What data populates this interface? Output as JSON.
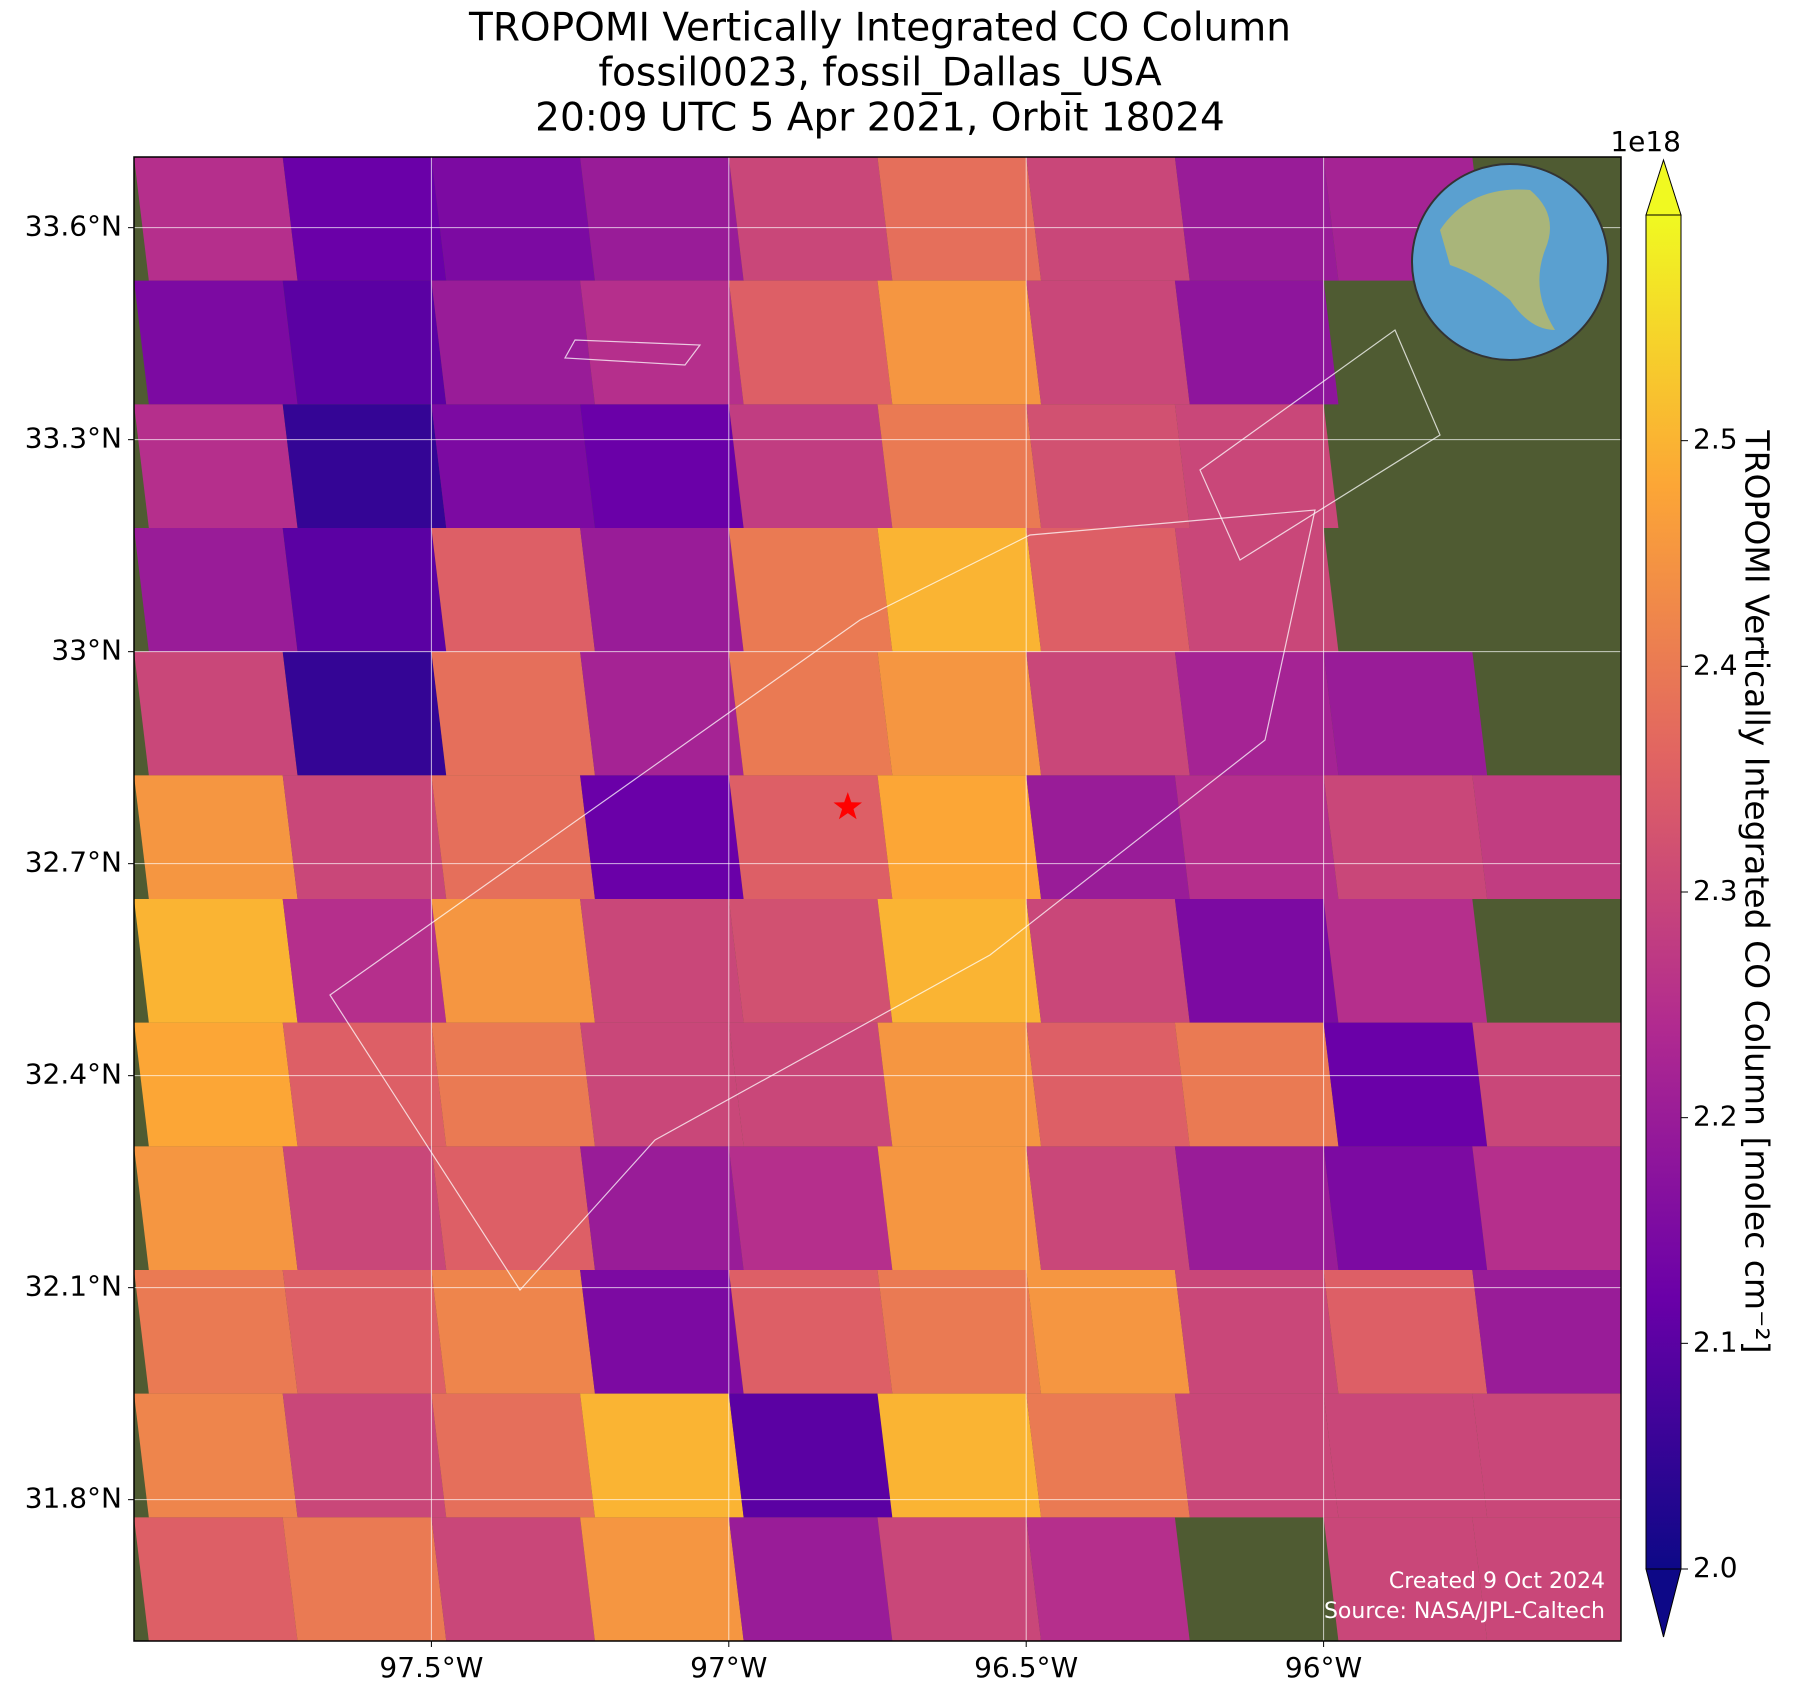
{
  "chart_data": {
    "type": "map",
    "title": [
      "TROPOMI Vertically Integrated CO Column",
      "fossil0023, fossil_Dallas_USA",
      "20:09 UTC 5 Apr 2021, Orbit 18024"
    ],
    "xlim": [
      -98.0,
      -95.5
    ],
    "ylim": [
      31.6,
      33.7
    ],
    "xticks": [
      {
        "value": -97.5,
        "label": "97.5°W"
      },
      {
        "value": -97,
        "label": "97°W"
      },
      {
        "value": -96.5,
        "label": "96.5°W"
      },
      {
        "value": -96,
        "label": "96°W"
      }
    ],
    "yticks": [
      {
        "value": 31.8,
        "label": "31.8°N"
      },
      {
        "value": 32.1,
        "label": "32.1°N"
      },
      {
        "value": 32.4,
        "label": "32.4°N"
      },
      {
        "value": 32.7,
        "label": "32.7°N"
      },
      {
        "value": 33,
        "label": "33°N"
      },
      {
        "value": 33.3,
        "label": "33.3°N"
      },
      {
        "value": 33.6,
        "label": "33.6°N"
      }
    ],
    "grid": true,
    "grid_data": {
      "lon": [
        -97.875,
        -97.625,
        -97.375,
        -97.125,
        -96.875,
        -96.625,
        -96.375,
        -96.125,
        -95.875,
        -95.625
      ],
      "lat": [
        33.6125,
        33.4375,
        33.2625,
        33.0875,
        32.9125,
        32.7375,
        32.5625,
        32.3875,
        32.2125,
        32.0375,
        31.8625,
        31.6875
      ],
      "values": [
        [
          2.25,
          2.12,
          2.15,
          2.2,
          2.3,
          2.38,
          2.3,
          2.2,
          2.22,
          null
        ],
        [
          2.15,
          2.1,
          2.2,
          2.25,
          2.35,
          2.45,
          2.3,
          2.18,
          null,
          null
        ],
        [
          2.25,
          2.05,
          2.15,
          2.12,
          2.28,
          2.4,
          2.32,
          2.3,
          null,
          null
        ],
        [
          2.2,
          2.1,
          2.35,
          2.2,
          2.4,
          2.5,
          2.35,
          2.3,
          null,
          null
        ],
        [
          2.3,
          2.05,
          2.38,
          2.22,
          2.4,
          2.45,
          2.3,
          2.22,
          2.2,
          null
        ],
        [
          2.45,
          2.3,
          2.38,
          2.12,
          2.35,
          2.48,
          2.2,
          2.25,
          2.3,
          2.28
        ],
        [
          2.5,
          2.25,
          2.45,
          2.3,
          2.32,
          2.5,
          2.3,
          2.15,
          2.25,
          null
        ],
        [
          2.48,
          2.35,
          2.4,
          2.3,
          2.3,
          2.45,
          2.35,
          2.4,
          2.12,
          2.3
        ],
        [
          2.45,
          2.3,
          2.35,
          2.2,
          2.25,
          2.45,
          2.3,
          2.2,
          2.15,
          2.25
        ],
        [
          2.4,
          2.35,
          2.42,
          2.15,
          2.35,
          2.4,
          2.45,
          2.3,
          2.35,
          2.2
        ],
        [
          2.42,
          2.3,
          2.38,
          2.5,
          2.1,
          2.5,
          2.4,
          2.3,
          2.3,
          2.3
        ],
        [
          2.35,
          2.4,
          2.3,
          2.45,
          2.2,
          2.3,
          2.25,
          null,
          2.3,
          2.3
        ]
      ]
    },
    "site": {
      "lon": -96.8,
      "lat": 32.78,
      "color": "#ff0000"
    },
    "colormap": [
      "#0d0887",
      "#6a00a8",
      "#b12a90",
      "#e16462",
      "#fca636",
      "#f0f921"
    ],
    "colorbar": {
      "label": "TROPOMI Vertically Integrated CO Column [molec cm⁻²]",
      "offset_label": "1e18",
      "clim": [
        2.0,
        2.6
      ],
      "ticks": [
        {
          "value": 2,
          "label": "2.0"
        },
        2.1,
        2.2,
        2.3,
        2.4,
        2.5
      ]
    },
    "credits": [
      "Created 9 Oct 2024",
      "Source: NASA/JPL-Caltech"
    ]
  }
}
